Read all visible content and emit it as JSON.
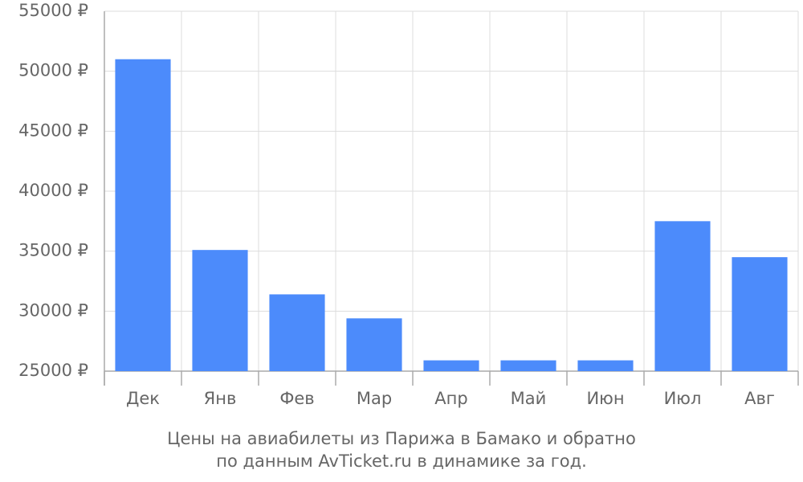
{
  "chart_data": {
    "type": "bar",
    "title": [
      "Цены на авиабилеты из Парижа в Бамако и обратно",
      "по данным AvTicket.ru в динамике за год."
    ],
    "categories": [
      "Дек",
      "Янв",
      "Фев",
      "Мар",
      "Апр",
      "Май",
      "Июн",
      "Июл",
      "Авг"
    ],
    "values": [
      51000,
      35100,
      31400,
      29400,
      25900,
      25900,
      25900,
      37500,
      34500
    ],
    "color": "#4c8bfb",
    "ylim": [
      25000,
      55000
    ],
    "yticks": [
      {
        "value": 25000,
        "label": "25000 ₽"
      },
      {
        "value": 30000,
        "label": "30000 ₽"
      },
      {
        "value": 35000,
        "label": "35000 ₽"
      },
      {
        "value": 40000,
        "label": "40000 ₽"
      },
      {
        "value": 45000,
        "label": "45000 ₽"
      },
      {
        "value": 50000,
        "label": "50000 ₽"
      },
      {
        "value": 55000,
        "label": "55000 ₽"
      }
    ],
    "grid": true
  }
}
